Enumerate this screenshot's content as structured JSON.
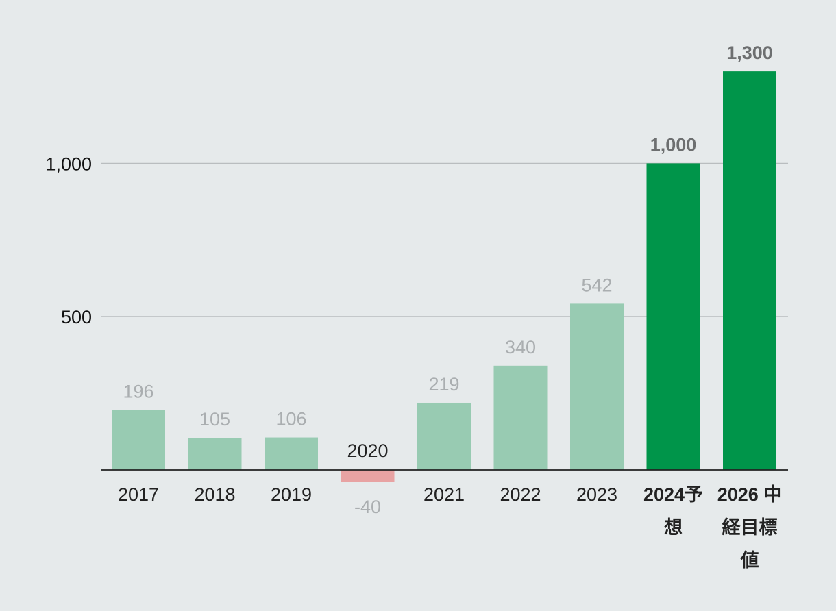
{
  "chart_data": {
    "type": "bar",
    "categories": [
      "2017",
      "2018",
      "2019",
      "2020",
      "2021",
      "2022",
      "2023",
      "2024予想",
      "2026 中経目標値"
    ],
    "x_labels": [
      [
        "2017"
      ],
      [
        "2018"
      ],
      [
        "2019"
      ],
      [
        "2020"
      ],
      [
        "2021"
      ],
      [
        "2022"
      ],
      [
        "2023"
      ],
      [
        "2024予",
        "想"
      ],
      [
        "2026 中",
        "経目標",
        "値"
      ]
    ],
    "values": [
      196,
      105,
      106,
      -40,
      219,
      340,
      542,
      1000,
      1300
    ],
    "value_labels": [
      "196",
      "105",
      "106",
      "-40",
      "219",
      "340",
      "542",
      "1,000",
      "1,300"
    ],
    "highlight": [
      false,
      false,
      false,
      false,
      false,
      false,
      false,
      true,
      true
    ],
    "y_ticks": [
      500,
      1000
    ],
    "y_tick_labels": [
      "500",
      "1,000"
    ],
    "ylim": [
      -60,
      1450
    ],
    "grid": true,
    "title": "",
    "xlabel": "",
    "ylabel": "",
    "colors": {
      "actual": "#98cbb2",
      "negative": "#e8a3a3",
      "target": "#00954a",
      "value_label_actual": "#aaaeb0",
      "value_label_target": "#6d6f70",
      "x_label": "#222222"
    }
  }
}
